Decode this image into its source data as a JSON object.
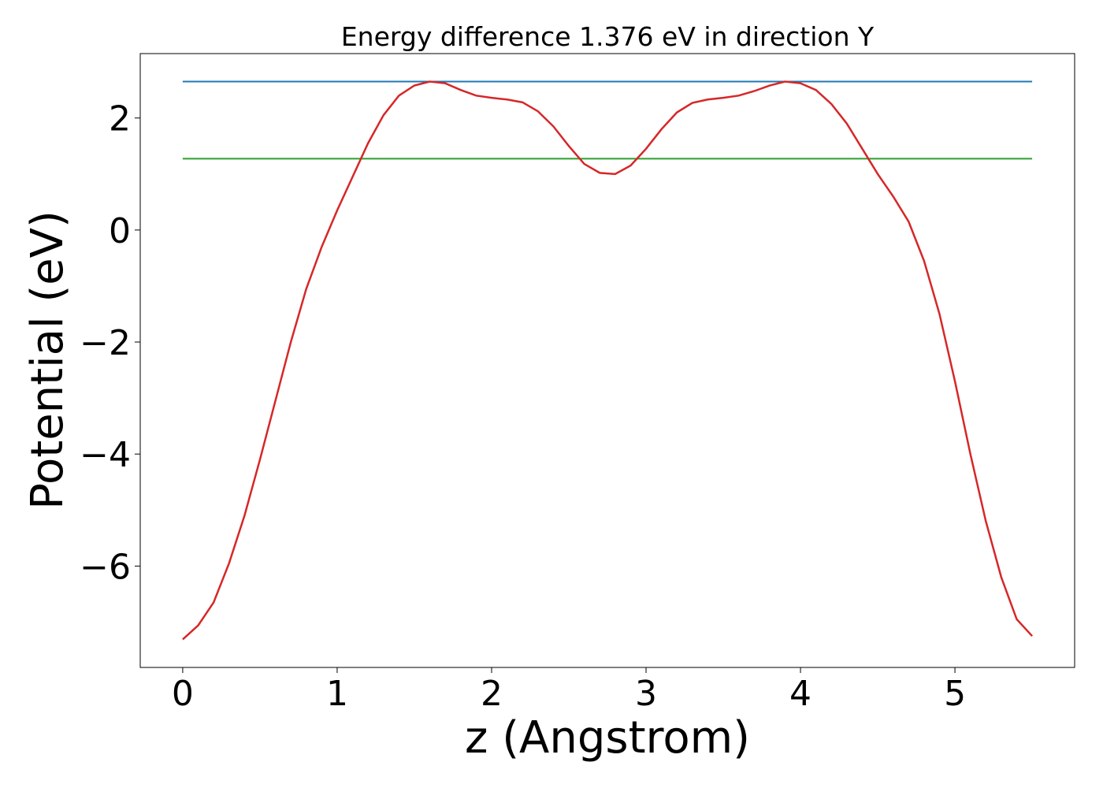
{
  "chart_data": {
    "type": "line",
    "title": "Energy difference 1.376 eV in direction Y",
    "xlabel": "z (Angstrom)",
    "ylabel": "Potential (eV)",
    "xlim": [
      -0.275,
      5.775
    ],
    "ylim": [
      -7.81,
      3.15
    ],
    "xticks": [
      0,
      1,
      2,
      3,
      4,
      5
    ],
    "yticks": [
      -6,
      -4,
      -2,
      0,
      2
    ],
    "series": [
      {
        "color": "#1f77b4",
        "x": [
          0,
          5.5
        ],
        "values": [
          2.65,
          2.65
        ]
      },
      {
        "color": "#2ca02c",
        "x": [
          0,
          5.5
        ],
        "values": [
          1.274,
          1.274
        ]
      },
      {
        "color": "#d62728",
        "x": [
          0,
          0.1,
          0.2,
          0.3,
          0.4,
          0.5,
          0.6,
          0.7,
          0.8,
          0.9,
          1.0,
          1.1,
          1.2,
          1.3,
          1.4,
          1.5,
          1.6,
          1.7,
          1.8,
          1.9,
          2.0,
          2.1,
          2.2,
          2.3,
          2.4,
          2.5,
          2.6,
          2.7,
          2.8,
          2.9,
          3.0,
          3.1,
          3.2,
          3.3,
          3.4,
          3.5,
          3.6,
          3.7,
          3.8,
          3.9,
          4.0,
          4.1,
          4.2,
          4.3,
          4.4,
          4.5,
          4.6,
          4.7,
          4.8,
          4.9,
          5.0,
          5.1,
          5.2,
          5.3,
          5.4,
          5.5
        ],
        "values": [
          -7.31,
          -7.06,
          -6.65,
          -5.95,
          -5.1,
          -4.1,
          -3.05,
          -2.0,
          -1.05,
          -0.3,
          0.35,
          0.95,
          1.55,
          2.05,
          2.4,
          2.58,
          2.65,
          2.62,
          2.5,
          2.4,
          2.36,
          2.33,
          2.28,
          2.12,
          1.85,
          1.5,
          1.18,
          1.02,
          1.0,
          1.15,
          1.45,
          1.8,
          2.1,
          2.27,
          2.33,
          2.36,
          2.4,
          2.48,
          2.58,
          2.65,
          2.62,
          2.5,
          2.25,
          1.9,
          1.45,
          1.0,
          0.6,
          0.15,
          -0.55,
          -1.5,
          -2.7,
          -4.0,
          -5.2,
          -6.2,
          -6.95,
          -7.25
        ]
      }
    ]
  }
}
